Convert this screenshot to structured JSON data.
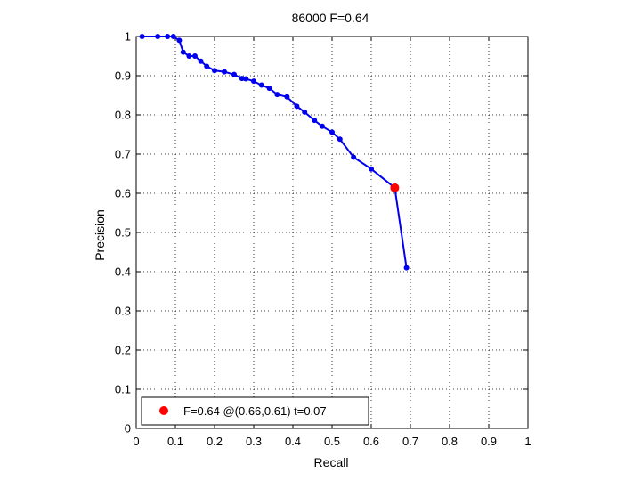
{
  "chart_data": {
    "type": "line",
    "title": "86000 F=0.64",
    "xlabel": "Recall",
    "ylabel": "Precision",
    "xlim": [
      0,
      1
    ],
    "ylim": [
      0,
      1
    ],
    "xticks": [
      "0",
      "0.1",
      "0.2",
      "0.3",
      "0.4",
      "0.5",
      "0.6",
      "0.7",
      "0.8",
      "0.9",
      "1"
    ],
    "yticks": [
      "0",
      "0.1",
      "0.2",
      "0.3",
      "0.4",
      "0.5",
      "0.6",
      "0.7",
      "0.8",
      "0.9",
      "1"
    ],
    "grid": true,
    "legend_position": "bottom-left",
    "series": [
      {
        "color": "#0000ee",
        "x": [
          0.015,
          0.055,
          0.08,
          0.095,
          0.11,
          0.12,
          0.135,
          0.15,
          0.165,
          0.18,
          0.2,
          0.225,
          0.25,
          0.27,
          0.28,
          0.3,
          0.32,
          0.34,
          0.36,
          0.385,
          0.41,
          0.43,
          0.455,
          0.475,
          0.5,
          0.52,
          0.555,
          0.6,
          0.66,
          0.69
        ],
        "y": [
          1.0,
          1.0,
          1.0,
          1.0,
          0.99,
          0.96,
          0.95,
          0.95,
          0.937,
          0.924,
          0.913,
          0.91,
          0.903,
          0.893,
          0.892,
          0.886,
          0.876,
          0.868,
          0.852,
          0.846,
          0.822,
          0.807,
          0.786,
          0.771,
          0.756,
          0.738,
          0.692,
          0.662,
          0.614,
          0.41
        ]
      }
    ],
    "highlight_point": {
      "x": 0.66,
      "y": 0.614,
      "color": "#ff0000"
    },
    "legend": {
      "label": "F=0.64 @(0.66,0.61) t=0.07",
      "marker_color": "#ff0000"
    }
  }
}
